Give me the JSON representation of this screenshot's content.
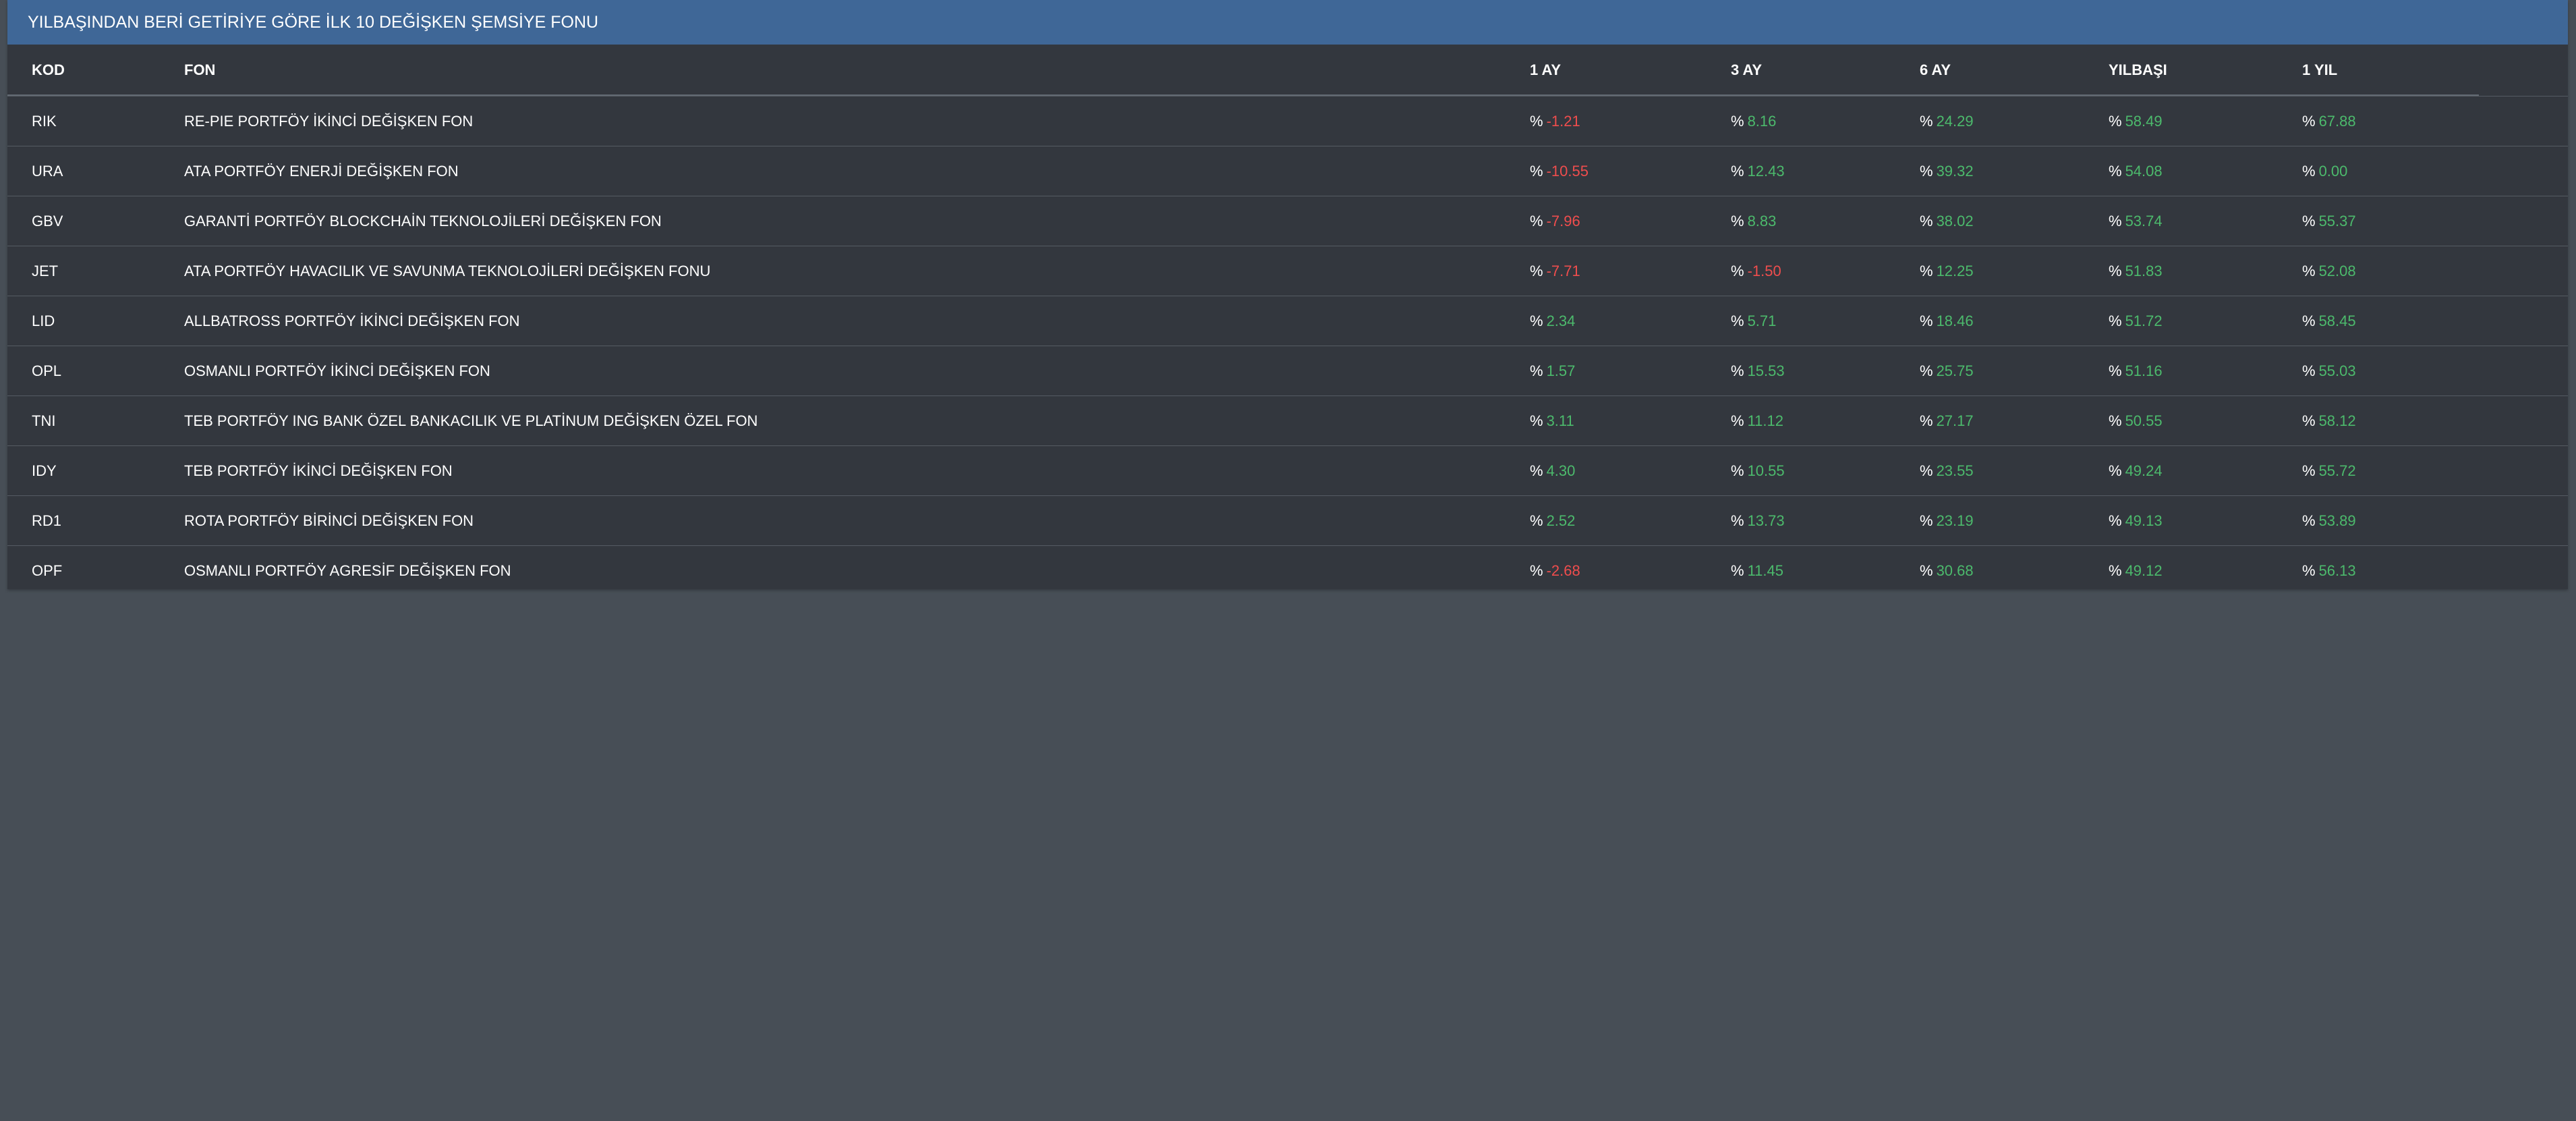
{
  "panel": {
    "title": "YILBAŞINDAN BERİ GETİRİYE GÖRE İLK 10 DEĞİŞKEN ŞEMSİYE FONU"
  },
  "table": {
    "columns": {
      "kod": "KOD",
      "fon": "FON",
      "m1": "1 AY",
      "m3": "3 AY",
      "m6": "6 AY",
      "ytd": "YILBAŞI",
      "y1": "1 YIL"
    },
    "percent_sign": "%",
    "colors": {
      "positive": "#4cba6c",
      "negative": "#ef4d4d",
      "header_bg": "#3f6797",
      "panel_bg": "#33373e",
      "page_bg": "#474e56"
    },
    "rows": [
      {
        "kod": "RIK",
        "fon": "RE-PIE PORTFÖY İKİNCİ DEĞİŞKEN FON",
        "m1": "-1.21",
        "m3": "8.16",
        "m6": "24.29",
        "ytd": "58.49",
        "y1": "67.88"
      },
      {
        "kod": "URA",
        "fon": "ATA PORTFÖY ENERJİ DEĞİŞKEN FON",
        "m1": "-10.55",
        "m3": "12.43",
        "m6": "39.32",
        "ytd": "54.08",
        "y1": "0.00"
      },
      {
        "kod": "GBV",
        "fon": "GARANTİ PORTFÖY BLOCKCHAİN TEKNOLOJİLERİ DEĞİŞKEN FON",
        "m1": "-7.96",
        "m3": "8.83",
        "m6": "38.02",
        "ytd": "53.74",
        "y1": "55.37"
      },
      {
        "kod": "JET",
        "fon": "ATA PORTFÖY HAVACILIK VE SAVUNMA TEKNOLOJİLERİ DEĞİŞKEN FONU",
        "m1": "-7.71",
        "m3": "-1.50",
        "m6": "12.25",
        "ytd": "51.83",
        "y1": "52.08"
      },
      {
        "kod": "LID",
        "fon": "ALLBATROSS PORTFÖY İKİNCİ DEĞİŞKEN FON",
        "m1": "2.34",
        "m3": "5.71",
        "m6": "18.46",
        "ytd": "51.72",
        "y1": "58.45"
      },
      {
        "kod": "OPL",
        "fon": "OSMANLI PORTFÖY İKİNCİ DEĞİŞKEN FON",
        "m1": "1.57",
        "m3": "15.53",
        "m6": "25.75",
        "ytd": "51.16",
        "y1": "55.03"
      },
      {
        "kod": "TNI",
        "fon": "TEB PORTFÖY ING BANK ÖZEL BANKACILIK VE PLATİNUM DEĞİŞKEN ÖZEL FON",
        "m1": "3.11",
        "m3": "11.12",
        "m6": "27.17",
        "ytd": "50.55",
        "y1": "58.12"
      },
      {
        "kod": "IDY",
        "fon": "TEB PORTFÖY İKİNCİ DEĞİŞKEN FON",
        "m1": "4.30",
        "m3": "10.55",
        "m6": "23.55",
        "ytd": "49.24",
        "y1": "55.72"
      },
      {
        "kod": "RD1",
        "fon": "ROTA PORTFÖY BİRİNCİ DEĞİŞKEN FON",
        "m1": "2.52",
        "m3": "13.73",
        "m6": "23.19",
        "ytd": "49.13",
        "y1": "53.89"
      },
      {
        "kod": "OPF",
        "fon": "OSMANLI PORTFÖY AGRESİF DEĞİŞKEN FON",
        "m1": "-2.68",
        "m3": "11.45",
        "m6": "30.68",
        "ytd": "49.12",
        "y1": "56.13"
      }
    ]
  }
}
